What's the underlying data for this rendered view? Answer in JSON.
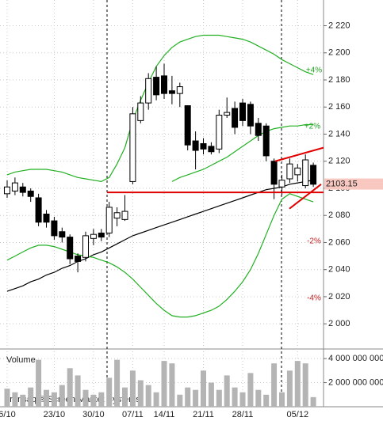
{
  "chart_data": [
    {
      "type": "candlestick",
      "categories": [
        "6/10",
        null,
        null,
        null,
        null,
        null,
        "23/10",
        null,
        null,
        null,
        null,
        "30/10",
        null,
        null,
        null,
        null,
        "07/11",
        null,
        null,
        null,
        "14/11",
        null,
        null,
        null,
        null,
        "21/11",
        null,
        null,
        null,
        null,
        "28/11",
        null,
        null,
        null,
        null,
        null,
        null,
        "05/12",
        null,
        null
      ],
      "open": [
        2096,
        2098,
        2101,
        2098,
        2093,
        2081,
        2076,
        2068,
        2064,
        2050,
        2049,
        2063,
        2067,
        2067,
        2078,
        2077,
        2105,
        2150,
        2163,
        2182,
        2183,
        2172,
        2170,
        2161,
        2135,
        2133,
        2131,
        2129,
        2154,
        2159,
        2163,
        2162,
        2148,
        2146,
        2120,
        2101,
        2107,
        2110,
        2102,
        2117
      ],
      "high": [
        2106,
        2108,
        2104,
        2100,
        2096,
        2084,
        2079,
        2071,
        2066,
        2052,
        2068,
        2070,
        2070,
        2090,
        2086,
        2095,
        2160,
        2168,
        2185,
        2190,
        2192,
        2183,
        2178,
        2161,
        2142,
        2137,
        2134,
        2158,
        2167,
        2164,
        2166,
        2164,
        2152,
        2148,
        2122,
        2110,
        2122,
        2118,
        2125,
        2119
      ],
      "low": [
        2093,
        2095,
        2094,
        2090,
        2072,
        2071,
        2062,
        2060,
        2044,
        2038,
        2046,
        2058,
        2061,
        2064,
        2072,
        2076,
        2103,
        2148,
        2158,
        2165,
        2166,
        2162,
        2160,
        2128,
        2114,
        2125,
        2125,
        2126,
        2152,
        2140,
        2146,
        2140,
        2135,
        2120,
        2092,
        2095,
        2104,
        2105,
        2100,
        2101
      ],
      "close": [
        2101,
        2104,
        2097,
        2094,
        2075,
        2075,
        2065,
        2064,
        2048,
        2046,
        2065,
        2066,
        2064,
        2086,
        2082,
        2083,
        2155,
        2163,
        2181,
        2169,
        2170,
        2170,
        2175,
        2132,
        2128,
        2129,
        2127,
        2154,
        2156,
        2145,
        2150,
        2146,
        2139,
        2124,
        2103,
        2106,
        2118,
        2115,
        2121,
        2103
      ],
      "lines": [
        {
          "color": "#000000",
          "values": [
            2024,
            2026,
            2028,
            2031,
            2033,
            2036,
            2038,
            2041,
            2043,
            2046,
            2048,
            2051,
            2053,
            2056,
            2059,
            2062,
            2065,
            2067,
            2069,
            2071,
            2073,
            2075,
            2077,
            2079,
            2081,
            2083,
            2085,
            2087,
            2089,
            2091,
            2093,
            2095,
            2097,
            2099,
            2100,
            2101,
            2103,
            2104,
            2105,
            2106
          ]
        },
        {
          "color": "#22b022",
          "values": [
            2110,
            2112,
            2113,
            2114,
            2114,
            2114,
            2113,
            2112,
            2110,
            2108,
            2107,
            2106,
            2105,
            2108,
            2118,
            2130,
            2150,
            2165,
            2178,
            2190,
            2198,
            2204,
            2208,
            2210,
            2212,
            2213,
            2213,
            2213,
            2212,
            2211,
            2210,
            2208,
            2205,
            2202,
            2199,
            2195,
            2192,
            2189,
            2186,
            2184
          ]
        },
        {
          "color": "#22b022",
          "values": [
            2047,
            2050,
            2053,
            2056,
            2058,
            2058,
            2057,
            2055,
            2053,
            2051,
            2050,
            2049,
            2047,
            2045,
            2042,
            2038,
            2033,
            2027,
            2021,
            2015,
            2010,
            2006,
            2005,
            2005,
            2006,
            2008,
            2010,
            2013,
            2018,
            2024,
            2031,
            2040,
            2052,
            2066,
            2080,
            2092,
            2096,
            2094,
            2092,
            2090
          ]
        },
        {
          "color": "#22b022",
          "values": [
            null,
            null,
            null,
            null,
            null,
            null,
            null,
            null,
            null,
            null,
            null,
            null,
            null,
            null,
            null,
            null,
            null,
            null,
            null,
            null,
            null,
            2105,
            2108,
            2110,
            2112,
            2114,
            2117,
            2120,
            2123,
            2127,
            2131,
            2135,
            2139,
            2142,
            2144,
            2145,
            2146,
            2146,
            2147,
            2147
          ]
        }
      ],
      "hline": {
        "value": 2097,
        "color": "#e00000"
      },
      "trendlines": [
        {
          "color": "#e00000",
          "values": [
            2120,
            2130
          ]
        },
        {
          "color": "#e00000",
          "values": [
            2085,
            2103
          ]
        }
      ],
      "last_price": {
        "value": 2103.15,
        "label": "2103.15"
      },
      "annotations": [
        "+4%",
        "+2%",
        "-2%",
        "-4%"
      ],
      "ylim": [
        1982,
        2239
      ],
      "yticks": [
        {
          "value": 2000,
          "label": "2 000"
        },
        {
          "value": 2020,
          "label": "2 020"
        },
        {
          "value": 2040,
          "label": "2 040"
        },
        {
          "value": 2060,
          "label": "2 060"
        },
        {
          "value": 2080,
          "label": "2 080"
        },
        {
          "value": 2100,
          "label": "2 100"
        },
        {
          "value": 2120,
          "label": "2 120"
        },
        {
          "value": 2140,
          "label": "2 140"
        },
        {
          "value": 2160,
          "label": "2 160"
        },
        {
          "value": 2180,
          "label": "2 180"
        },
        {
          "value": 2200,
          "label": "2 200"
        },
        {
          "value": 2220,
          "label": "2 220"
        }
      ],
      "grid": true
    },
    {
      "type": "bar",
      "title": "Volume",
      "watermark": "Transaq ® Screen Market Systems",
      "color": "#b4b4b4",
      "values": [
        1500000000,
        1200000000,
        1000000000,
        1600000000,
        3900000000,
        1400000000,
        1200000000,
        1800000000,
        3200000000,
        2600000000,
        1400000000,
        1000000000,
        1200000000,
        2400000000,
        3900000000,
        1600000000,
        3000000000,
        2200000000,
        1800000000,
        1200000000,
        3800000000,
        3600000000,
        1000000000,
        1600000000,
        1400000000,
        3000000000,
        2000000000,
        1400000000,
        2600000000,
        1600000000,
        1200000000,
        2800000000,
        1400000000,
        1000000000,
        3600000000,
        1200000000,
        3000000000,
        3800000000,
        3600000000,
        800000000
      ],
      "ylim": [
        0,
        4400000000
      ],
      "yticks": [
        {
          "value": 2000000000,
          "label": "2 000 000 000"
        },
        {
          "value": 4000000000,
          "label": "4 000 000 000"
        }
      ]
    }
  ]
}
